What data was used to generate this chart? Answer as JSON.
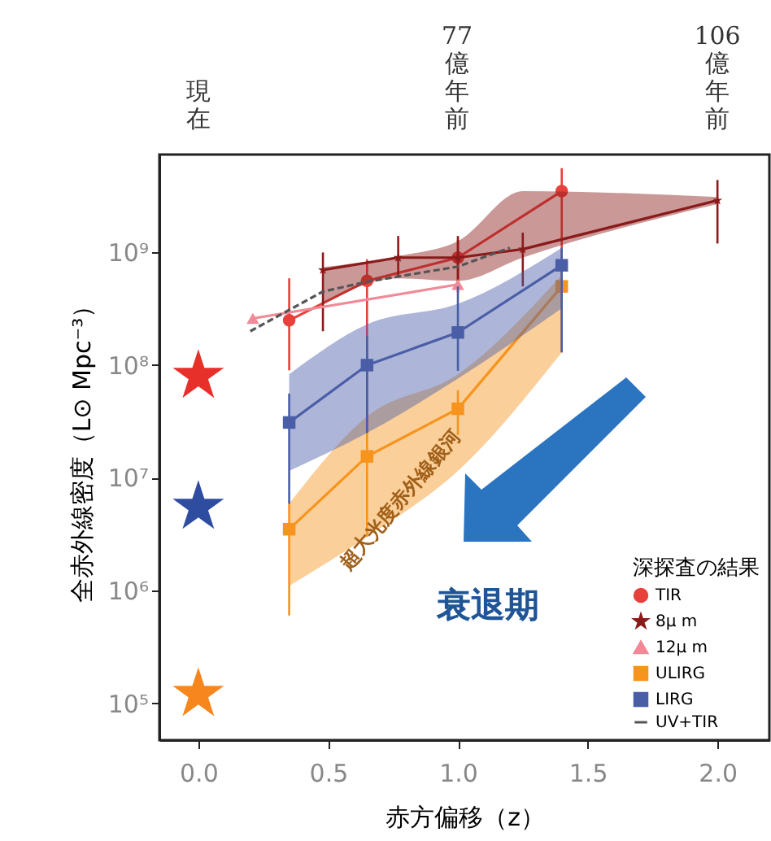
{
  "chart_data": {
    "type": "line",
    "xlabel": "赤方偏移（z）",
    "ylabel": "全赤外線密度（L⊙ Mpc⁻³）",
    "legend_title": "深探査の結果",
    "xlim": [
      -0.15,
      2.2
    ],
    "xticks": [
      {
        "value": 0,
        "label": "0.0"
      },
      {
        "value": 0.5,
        "label": "0.5"
      },
      {
        "value": 1,
        "label": "1.0"
      },
      {
        "value": 1.5,
        "label": "1.5"
      },
      {
        "value": 2,
        "label": "2.0"
      }
    ],
    "ylim": [
      47000,
      7400000000
    ],
    "yticks": [
      {
        "value": 100000,
        "label": "10⁵"
      },
      {
        "value": 1000000,
        "label": "10⁶"
      },
      {
        "value": 10000000,
        "label": "10⁷"
      },
      {
        "value": 100000000,
        "label": "10⁸"
      },
      {
        "value": 1000000000,
        "label": "10⁹"
      }
    ],
    "log": true,
    "grid": false,
    "legend": "bottom right",
    "annotations": [
      "超大光度赤外線銀河",
      "衰退期",
      "現在",
      "77億年前",
      "106億年前"
    ],
    "series": [
      {
        "name": "TIR",
        "color": "#e8413c",
        "marker": "circle",
        "x": [
          0.35,
          0.65,
          1.0,
          1.4
        ],
        "values": [
          250000000.0,
          560000000.0,
          900000000.0,
          3500000000.0
        ],
        "errors": [
          [
            90000000.0,
            590000000.0
          ],
          [
            25000000.0,
            870000000.0
          ],
          [
            440000000.0,
            1300000000.0
          ],
          [
            130000000.0,
            5600000000.0
          ]
        ]
      },
      {
        "name": "8μ m",
        "color": "#8b1a1a",
        "marker": "star",
        "x": [
          0.48,
          0.77,
          1.0,
          1.25,
          2.0
        ],
        "values": [
          700000000.0,
          900000000.0,
          900000000.0,
          1070000000.0,
          2900000000.0
        ],
        "errors": [
          [
            200000000.0,
            1000000000.0
          ],
          [
            600000000.0,
            1400000000.0
          ],
          [
            500000000.0,
            1400000000.0
          ],
          [
            500000000.0,
            1500000000.0
          ],
          [
            1200000000.0,
            4400000000.0
          ]
        ],
        "lower": [
          350000000.0,
          590000000.0,
          560000000.0,
          900000000.0,
          2700000000.0
        ],
        "upper": [
          740000000.0,
          930000000.0,
          1260000000.0,
          3500000000.0,
          3100000000.0
        ]
      },
      {
        "name": "12μ m",
        "color": "#f08a96",
        "marker": "triangle",
        "x": [
          0.21,
          1.0
        ],
        "values": [
          260000000.0,
          520000000.0
        ]
      },
      {
        "name": "ULIRG",
        "color": "#f7941d",
        "marker": "square",
        "x": [
          0.35,
          0.65,
          1.0,
          1.4
        ],
        "values": [
          3500000.0,
          15500000.0,
          41000000.0,
          500000000.0
        ],
        "errors": [
          [
            600000.0,
            6000000.0
          ],
          [
            3000000.0,
            25000000.0
          ],
          [
            24000000.0,
            60000000.0
          ],
          [
            130000000.0,
            560000000.0
          ]
        ],
        "lower": [
          1100000.0,
          3000000.0,
          11500000.0,
          130000000.0
        ],
        "upper": [
          5900000.0,
          35000000.0,
          83000000.0,
          630000000.0
        ]
      },
      {
        "name": "LIRG",
        "color": "#4a5ea8",
        "marker": "square",
        "x": [
          0.35,
          0.65,
          1.0,
          1.4
        ],
        "values": [
          31000000.0,
          100000000.0,
          195000000.0,
          770000000.0
        ],
        "errors": [
          [
            5900000.0,
            56000000.0
          ],
          [
            25000000.0,
            180000000.0
          ],
          [
            89000000.0,
            500000000.0
          ],
          [
            130000000.0,
            1100000000.0
          ]
        ],
        "lower": [
          11500000.0,
          25000000.0,
          76000000.0,
          320000000.0
        ],
        "upper": [
          83000000.0,
          230000000.0,
          350000000.0,
          1100000000.0
        ]
      },
      {
        "name": "UV+TIR",
        "color": "#555555",
        "marker": "none",
        "line_style": "dashed",
        "x": [
          0.2,
          0.48,
          0.65,
          1.0,
          1.2
        ],
        "values": [
          200000000.0,
          450000000.0,
          550000000.0,
          750000000.0,
          1100000000.0
        ]
      },
      {
        "type": "scatter",
        "marker": "star",
        "x": [
          0,
          0,
          0
        ],
        "values": [
          80000000.0,
          5500000.0,
          120000.0
        ],
        "colors": [
          "#e8302a",
          "#2e4da0",
          "#f7861e"
        ]
      }
    ]
  }
}
